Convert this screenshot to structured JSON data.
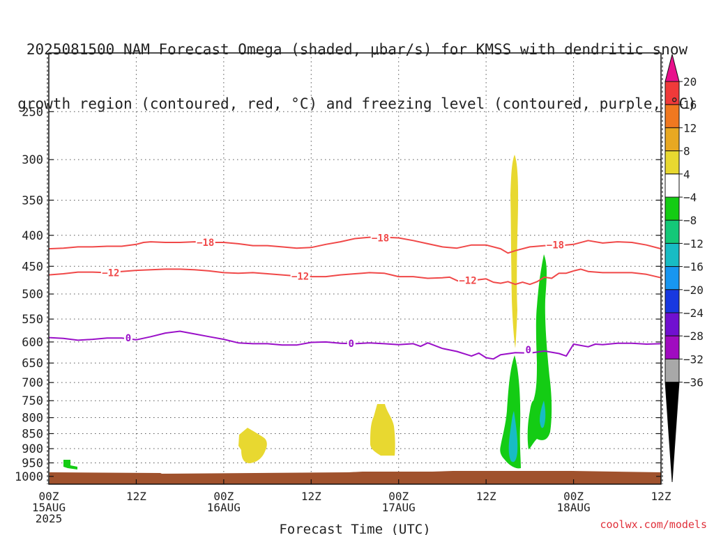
{
  "title_lines": [
    "2025081500 NAM Forecast Omega (shaded, μbar/s) for KMSS with dendritic snow",
    "growth region (contoured, red, °C) and freezing level (contoured, purple, °C)"
  ],
  "source": "coolwx.com/models",
  "chart_data": {
    "type": "time-height cross section",
    "xlabel": "Forecast Time (UTC)",
    "ylabel": "",
    "x_ticks": [
      {
        "hour": 0,
        "lines": [
          "00Z",
          "15AUG",
          "2025"
        ]
      },
      {
        "hour": 12,
        "lines": [
          "12Z"
        ]
      },
      {
        "hour": 24,
        "lines": [
          "00Z",
          "16AUG"
        ]
      },
      {
        "hour": 36,
        "lines": [
          "12Z"
        ]
      },
      {
        "hour": 48,
        "lines": [
          "00Z",
          "17AUG"
        ]
      },
      {
        "hour": 60,
        "lines": [
          "12Z"
        ]
      },
      {
        "hour": 72,
        "lines": [
          "00Z",
          "18AUG"
        ]
      },
      {
        "hour": 84,
        "lines": [
          "12Z"
        ]
      }
    ],
    "xlim_hours": [
      0,
      84
    ],
    "y_ticks_hpa": [
      250,
      300,
      350,
      400,
      450,
      500,
      550,
      600,
      650,
      700,
      750,
      800,
      850,
      900,
      950,
      1000
    ],
    "ylim_hpa": [
      200,
      1030
    ],
    "grid": true,
    "contours": [
      {
        "name": "-18",
        "color": "#f04848",
        "points": [
          [
            0,
            421
          ],
          [
            2,
            420
          ],
          [
            4,
            418
          ],
          [
            6,
            418
          ],
          [
            8,
            417
          ],
          [
            10,
            417
          ],
          [
            12,
            414
          ],
          [
            13,
            411
          ],
          [
            14,
            410
          ],
          [
            16,
            411
          ],
          [
            18,
            411
          ],
          [
            20,
            410
          ],
          [
            22,
            411
          ],
          [
            24,
            411
          ],
          [
            26,
            413
          ],
          [
            28,
            416
          ],
          [
            30,
            416
          ],
          [
            32,
            418
          ],
          [
            34,
            420
          ],
          [
            36,
            419
          ],
          [
            38,
            414
          ],
          [
            40,
            410
          ],
          [
            42,
            405
          ],
          [
            44,
            403
          ],
          [
            46,
            403
          ],
          [
            48,
            404
          ],
          [
            50,
            408
          ],
          [
            52,
            413
          ],
          [
            54,
            418
          ],
          [
            56,
            420
          ],
          [
            58,
            415
          ],
          [
            60,
            415
          ],
          [
            62,
            421
          ],
          [
            63,
            428
          ],
          [
            64,
            424
          ],
          [
            66,
            418
          ],
          [
            68,
            416
          ],
          [
            70,
            416
          ],
          [
            72,
            414
          ],
          [
            74,
            408
          ],
          [
            76,
            412
          ],
          [
            78,
            410
          ],
          [
            80,
            411
          ],
          [
            82,
            415
          ],
          [
            84,
            421
          ]
        ],
        "labels": [
          [
            21.5,
            411
          ],
          [
            45.5,
            404
          ],
          [
            69.5,
            415
          ]
        ]
      },
      {
        "name": "-12",
        "color": "#f04848",
        "points": [
          [
            0,
            465
          ],
          [
            2,
            463
          ],
          [
            4,
            460
          ],
          [
            6,
            460
          ],
          [
            8,
            461
          ],
          [
            10,
            459
          ],
          [
            12,
            457
          ],
          [
            14,
            456
          ],
          [
            16,
            455
          ],
          [
            18,
            455
          ],
          [
            20,
            456
          ],
          [
            22,
            458
          ],
          [
            24,
            461
          ],
          [
            26,
            462
          ],
          [
            28,
            461
          ],
          [
            30,
            463
          ],
          [
            32,
            465
          ],
          [
            34,
            467
          ],
          [
            35,
            466
          ],
          [
            36,
            468
          ],
          [
            38,
            468
          ],
          [
            40,
            465
          ],
          [
            42,
            463
          ],
          [
            43,
            462
          ],
          [
            44,
            461
          ],
          [
            46,
            462
          ],
          [
            47,
            465
          ],
          [
            48,
            468
          ],
          [
            50,
            468
          ],
          [
            52,
            471
          ],
          [
            54,
            470
          ],
          [
            55,
            469
          ],
          [
            56,
            475
          ],
          [
            57,
            480
          ],
          [
            58,
            475
          ],
          [
            60,
            472
          ],
          [
            61,
            478
          ],
          [
            62,
            480
          ],
          [
            63,
            477
          ],
          [
            64,
            482
          ],
          [
            65,
            478
          ],
          [
            66,
            482
          ],
          [
            67,
            477
          ],
          [
            68,
            469
          ],
          [
            69,
            471
          ],
          [
            70,
            462
          ],
          [
            71,
            462
          ],
          [
            72,
            458
          ],
          [
            73,
            455
          ],
          [
            74,
            459
          ],
          [
            76,
            461
          ],
          [
            78,
            461
          ],
          [
            80,
            461
          ],
          [
            82,
            464
          ],
          [
            84,
            470
          ]
        ],
        "labels": [
          [
            8.5,
            461
          ],
          [
            34.5,
            467
          ],
          [
            57.5,
            475
          ]
        ]
      },
      {
        "name": "0",
        "color": "#9a10c8",
        "points": [
          [
            0,
            590
          ],
          [
            2,
            592
          ],
          [
            4,
            596
          ],
          [
            6,
            594
          ],
          [
            8,
            591
          ],
          [
            10,
            591
          ],
          [
            12,
            595
          ],
          [
            14,
            588
          ],
          [
            16,
            580
          ],
          [
            18,
            576
          ],
          [
            20,
            582
          ],
          [
            22,
            588
          ],
          [
            24,
            594
          ],
          [
            26,
            602
          ],
          [
            28,
            604
          ],
          [
            30,
            604
          ],
          [
            32,
            607
          ],
          [
            34,
            607
          ],
          [
            36,
            601
          ],
          [
            38,
            600
          ],
          [
            40,
            603
          ],
          [
            42,
            604
          ],
          [
            44,
            602
          ],
          [
            46,
            604
          ],
          [
            48,
            606
          ],
          [
            50,
            604
          ],
          [
            51,
            610
          ],
          [
            52,
            602
          ],
          [
            54,
            615
          ],
          [
            56,
            622
          ],
          [
            58,
            633
          ],
          [
            59,
            626
          ],
          [
            60,
            637
          ],
          [
            61,
            640
          ],
          [
            62,
            630
          ],
          [
            64,
            625
          ],
          [
            66,
            626
          ],
          [
            68,
            621
          ],
          [
            70,
            627
          ],
          [
            71,
            633
          ],
          [
            72,
            605
          ],
          [
            74,
            611
          ],
          [
            75,
            605
          ],
          [
            76,
            606
          ],
          [
            78,
            603
          ],
          [
            80,
            603
          ],
          [
            82,
            605
          ],
          [
            84,
            604
          ]
        ],
        "labels": [
          [
            10.9,
            591
          ],
          [
            41.5,
            603
          ],
          [
            65.8,
            618
          ]
        ]
      }
    ],
    "colorbar": {
      "labels": [
        "20",
        "16",
        "12",
        "8",
        "4",
        "−4",
        "−8",
        "−12",
        "−16",
        "−20",
        "−24",
        "−28",
        "−32",
        "−36"
      ],
      "colors": [
        "#e8108c",
        "#f03a3a",
        "#f07820",
        "#e8a822",
        "#e8d830",
        "#ffffff",
        "#14cc14",
        "#14c878",
        "#18bcc4",
        "#1896f0",
        "#1838e0",
        "#7010d0",
        "#a00cc0",
        "#a8a8a8",
        "#000000"
      ]
    },
    "shaded_regions": [
      {
        "name": "omega-positive-350hpa",
        "color": "#e8d830"
      },
      {
        "name": "omega-positive-900hpa-a",
        "color": "#e8d830"
      },
      {
        "name": "omega-positive-900hpa-b",
        "color": "#e8d830"
      },
      {
        "name": "omega-negative-low-level",
        "color": "#14cc14"
      },
      {
        "name": "omega-negative-column",
        "color": "#14cc14"
      },
      {
        "name": "omega-negative-core",
        "color": "#18bcc4"
      },
      {
        "name": "terrain",
        "color": "#a0522d"
      }
    ]
  }
}
